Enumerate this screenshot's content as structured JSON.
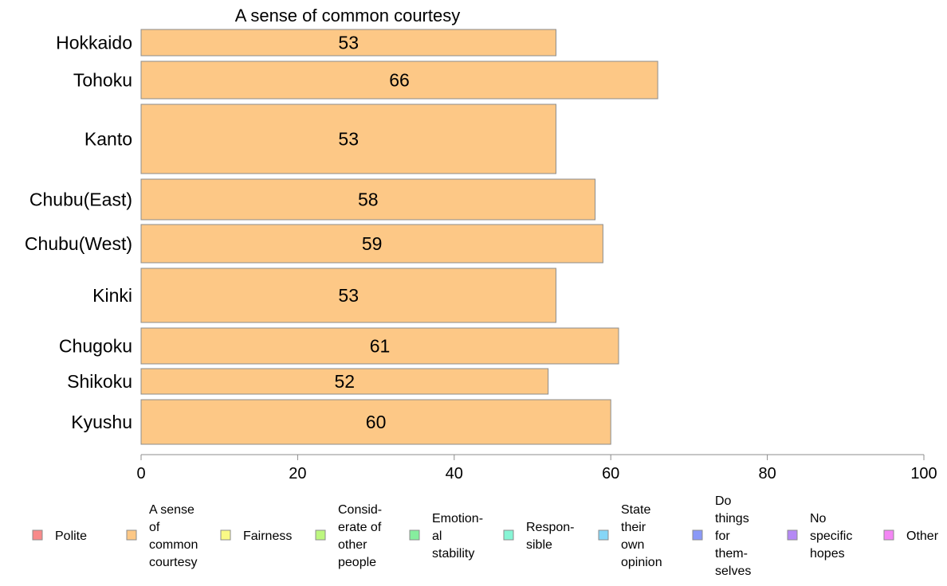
{
  "chart_data": {
    "type": "bar",
    "orientation": "horizontal",
    "title": "A sense of common courtesy",
    "categories": [
      "Hokkaido",
      "Tohoku",
      "Kanto",
      "Chubu(East)",
      "Chubu(West)",
      "Kinki",
      "Chugoku",
      "Shikoku",
      "Kyushu"
    ],
    "series": [
      {
        "name": "A sense of common courtesy",
        "values": [
          53,
          66,
          53,
          58,
          59,
          53,
          61,
          52,
          60
        ],
        "color": "#fdc886"
      }
    ],
    "data_labels": [
      "53",
      "66",
      "53",
      "58",
      "59",
      "53",
      "61",
      "52",
      "60"
    ],
    "xlim": [
      0,
      100
    ],
    "x_ticks": [
      0,
      20,
      40,
      60,
      80,
      100
    ],
    "grid": false,
    "legend_position": "bottom",
    "legend": [
      {
        "label": "Polite",
        "color": "#f88a8a"
      },
      {
        "label": "A sense of common courtesy",
        "lines": [
          "A sense",
          "of",
          "common",
          "courtesy"
        ],
        "color": "#fdc886"
      },
      {
        "label": "Fairness",
        "color": "#fafa86"
      },
      {
        "label": "Consid-erate of other people",
        "lines": [
          "Consid-",
          "erate of",
          "other",
          "people"
        ],
        "color": "#bdf77f"
      },
      {
        "label": "Emotion-al stability",
        "lines": [
          "Emotion-",
          "al",
          "stability"
        ],
        "color": "#86ee9e"
      },
      {
        "label": "Respon-sible",
        "lines": [
          "Respon-",
          "sible"
        ],
        "color": "#86f5d5"
      },
      {
        "label": "State their own opinion",
        "lines": [
          "State",
          "their",
          "own",
          "opinion"
        ],
        "color": "#86d6f7"
      },
      {
        "label": "Do things for them-selves",
        "lines": [
          "Do",
          "things",
          "for",
          "them-",
          "selves"
        ],
        "color": "#8a99f7"
      },
      {
        "label": "No specific hopes",
        "lines": [
          "No",
          "specific",
          "hopes"
        ],
        "color": "#b589f5"
      },
      {
        "label": "Other",
        "color": "#f486f5"
      }
    ]
  }
}
